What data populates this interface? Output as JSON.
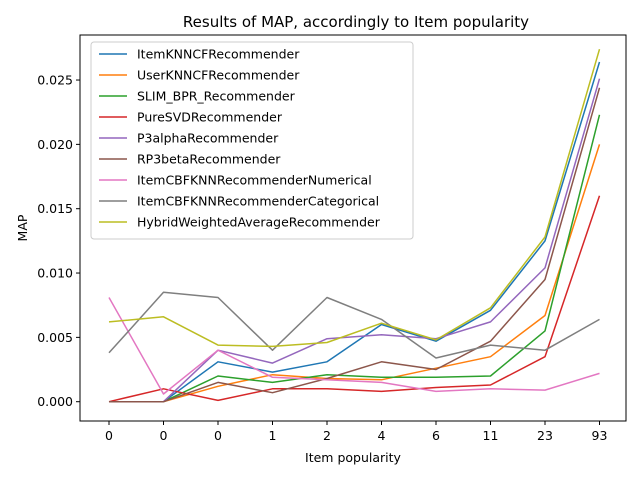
{
  "chart_data": {
    "type": "line",
    "title": "Results of MAP, accordingly to Item popularity",
    "xlabel": "Item popularity",
    "ylabel": "MAP",
    "categories": [
      "0",
      "0",
      "0",
      "1",
      "2",
      "4",
      "6",
      "11",
      "23",
      "93"
    ],
    "ylim": [
      -0.0015,
      0.0285
    ],
    "yticks": [
      "0.000",
      "0.005",
      "0.010",
      "0.015",
      "0.020",
      "0.025"
    ],
    "ytick_values": [
      0,
      0.005,
      0.01,
      0.015,
      0.02,
      0.025
    ],
    "grid": false,
    "legend": "top-left",
    "series": [
      {
        "name": "ItemKNNCFRecommender",
        "color": "#1f77b4",
        "values": [
          0.0,
          0.0,
          0.0031,
          0.0023,
          0.0031,
          0.006,
          0.0047,
          0.0071,
          0.0125,
          0.0264
        ]
      },
      {
        "name": "UserKNNCFRecommender",
        "color": "#ff7f0e",
        "values": [
          0.0,
          0.0,
          0.0012,
          0.0021,
          0.0018,
          0.0017,
          0.0026,
          0.0035,
          0.0067,
          0.02
        ]
      },
      {
        "name": "SLIM_BPR_Recommender",
        "color": "#2ca02c",
        "values": [
          0.0,
          0.0,
          0.002,
          0.0015,
          0.0021,
          0.0019,
          0.0019,
          0.002,
          0.0055,
          0.0223
        ]
      },
      {
        "name": "PureSVDRecommender",
        "color": "#d62728",
        "values": [
          0.0,
          0.001,
          0.0001,
          0.001,
          0.001,
          0.0008,
          0.0011,
          0.0013,
          0.0035,
          0.016
        ]
      },
      {
        "name": "P3alphaRecommender",
        "color": "#9467bd",
        "values": [
          0.0,
          0.0,
          0.004,
          0.003,
          0.0049,
          0.0052,
          0.0049,
          0.0062,
          0.0104,
          0.0251
        ]
      },
      {
        "name": "RP3betaRecommender",
        "color": "#8c564b",
        "values": [
          0.0,
          0.0,
          0.0015,
          0.0007,
          0.0018,
          0.0031,
          0.0025,
          0.0047,
          0.0095,
          0.0244
        ]
      },
      {
        "name": "ItemCBFKNNRecommenderNumerical",
        "color": "#e377c2",
        "values": [
          0.0081,
          0.0006,
          0.004,
          0.0019,
          0.0017,
          0.0015,
          0.0008,
          0.001,
          0.0009,
          0.0022
        ]
      },
      {
        "name": "ItemCBFKNNRecommenderCategorical",
        "color": "#7f7f7f",
        "values": [
          0.0038,
          0.0085,
          0.0081,
          0.004,
          0.0081,
          0.0064,
          0.0034,
          0.0044,
          0.004,
          0.0064
        ]
      },
      {
        "name": "HybridWeightedAverageRecommender",
        "color": "#bcbd22",
        "values": [
          0.0062,
          0.0066,
          0.0044,
          0.0043,
          0.0046,
          0.0061,
          0.0048,
          0.0073,
          0.0128,
          0.0274
        ]
      }
    ]
  }
}
